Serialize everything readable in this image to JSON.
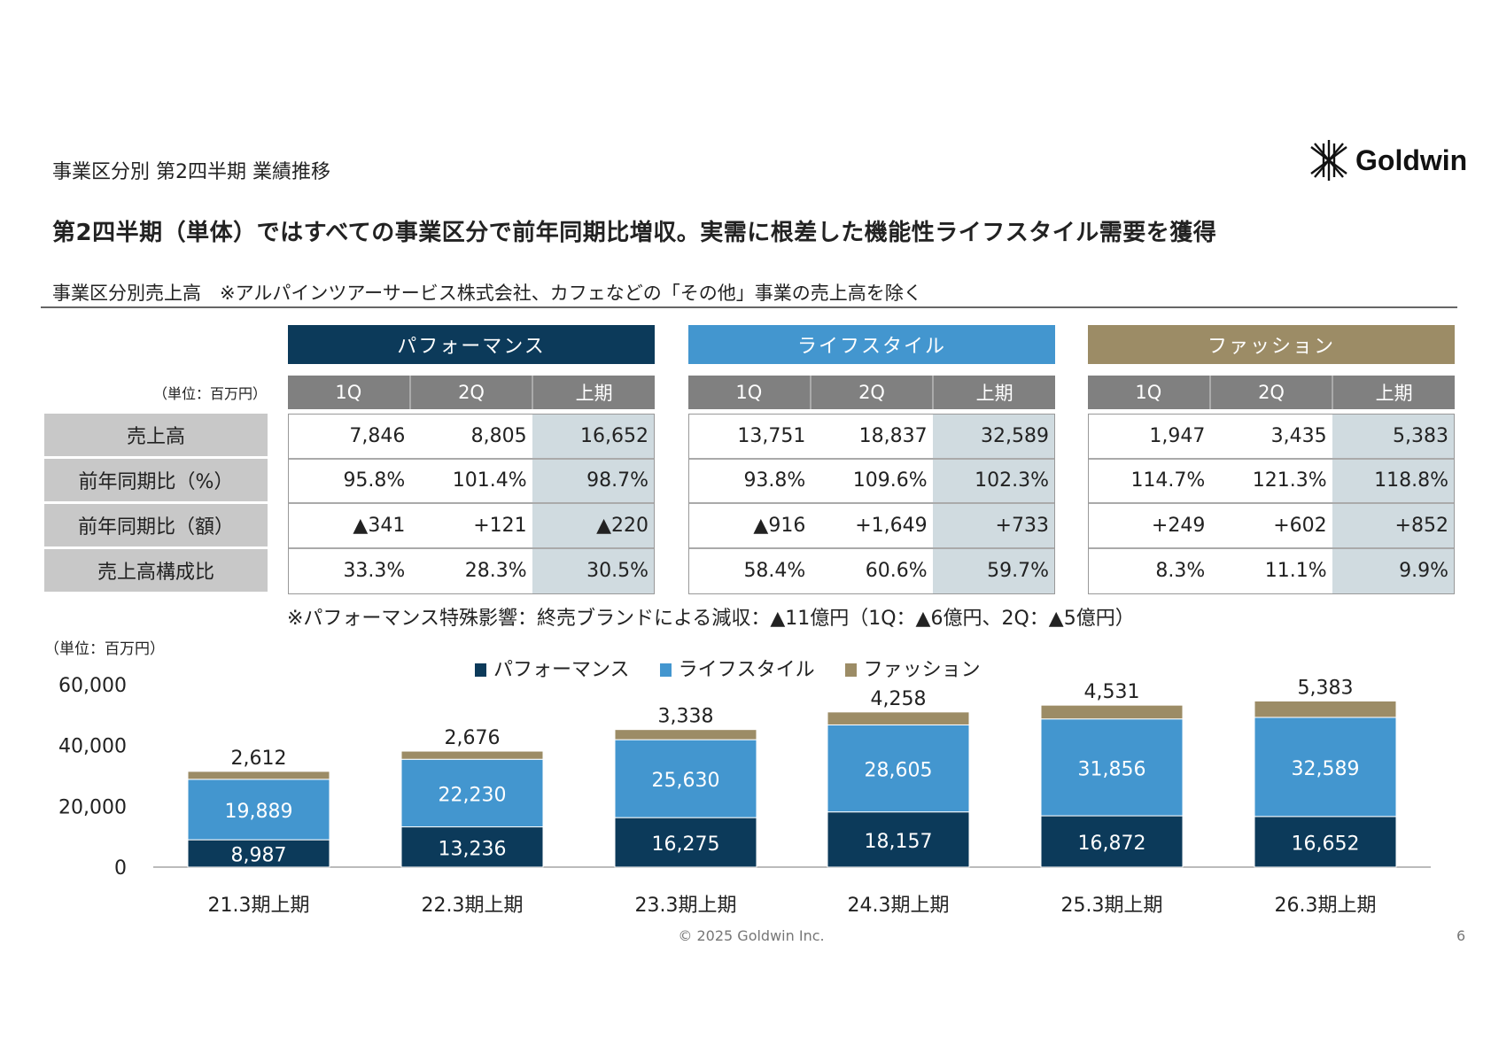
{
  "header": {
    "section_title": "事業区分別 第2四半期 業績推移",
    "headline": "第2四半期（単体）ではすべての事業区分で前年同期比増収。実需に根差した機能性ライフスタイル需要を獲得",
    "subtitle": "事業区分別売上高　※アルパインツアーサービス株式会社、カフェなどの「その他」事業の売上高を除く",
    "logo_text": "Goldwin"
  },
  "table": {
    "unit": "（単位：百万円）",
    "row_labels": [
      "売上高",
      "前年同期比（%）",
      "前年同期比（額）",
      "売上高構成比"
    ],
    "columns": [
      "1Q",
      "2Q",
      "上期"
    ],
    "segments": [
      {
        "name": "パフォーマンス",
        "color": "#0c3a5a",
        "rows": [
          [
            "7,846",
            "8,805",
            "16,652"
          ],
          [
            "95.8%",
            "101.4%",
            "98.7%"
          ],
          [
            "▲341",
            "+121",
            "▲220"
          ],
          [
            "33.3%",
            "28.3%",
            "30.5%"
          ]
        ]
      },
      {
        "name": "ライフスタイル",
        "color": "#4396cf",
        "rows": [
          [
            "13,751",
            "18,837",
            "32,589"
          ],
          [
            "93.8%",
            "109.6%",
            "102.3%"
          ],
          [
            "▲916",
            "+1,649",
            "+733"
          ],
          [
            "58.4%",
            "60.6%",
            "59.7%"
          ]
        ]
      },
      {
        "name": "ファッション",
        "color": "#9c8c66",
        "rows": [
          [
            "1,947",
            "3,435",
            "5,383"
          ],
          [
            "114.7%",
            "121.3%",
            "118.8%"
          ],
          [
            "+249",
            "+602",
            "+852"
          ],
          [
            "8.3%",
            "11.1%",
            "9.9%"
          ]
        ]
      }
    ],
    "note": "※パフォーマンス特殊影響：終売ブランドによる減収：▲11億円（1Q：▲6億円、2Q：▲5億円）"
  },
  "chart_data": {
    "type": "bar",
    "stacked": true,
    "unit_label": "（単位：百万円）",
    "categories": [
      "21.3期上期",
      "22.3期上期",
      "23.3期上期",
      "24.3期上期",
      "25.3期上期",
      "26.3期上期"
    ],
    "series": [
      {
        "name": "パフォーマンス",
        "color": "#0c3a5a",
        "values": [
          8987,
          13236,
          16275,
          18157,
          16872,
          16652
        ],
        "labels": [
          "8,987",
          "13,236",
          "16,275",
          "18,157",
          "16,872",
          "16,652"
        ]
      },
      {
        "name": "ライフスタイル",
        "color": "#4396cf",
        "values": [
          19889,
          22230,
          25630,
          28605,
          31856,
          32589
        ],
        "labels": [
          "19,889",
          "22,230",
          "25,630",
          "28,605",
          "31,856",
          "32,589"
        ]
      },
      {
        "name": "ファッション",
        "color": "#9c8c66",
        "values": [
          2612,
          2676,
          3338,
          4258,
          4531,
          5383
        ],
        "labels": [
          "2,612",
          "2,676",
          "3,338",
          "4,258",
          "4,531",
          "5,383"
        ]
      }
    ],
    "yticks": [
      "0",
      "20,000",
      "40,000",
      "60,000"
    ],
    "ylim": [
      0,
      60000
    ],
    "legend": "top",
    "grid": false
  },
  "footer": {
    "copyright": "© 2025 Goldwin Inc.",
    "page": "6"
  }
}
